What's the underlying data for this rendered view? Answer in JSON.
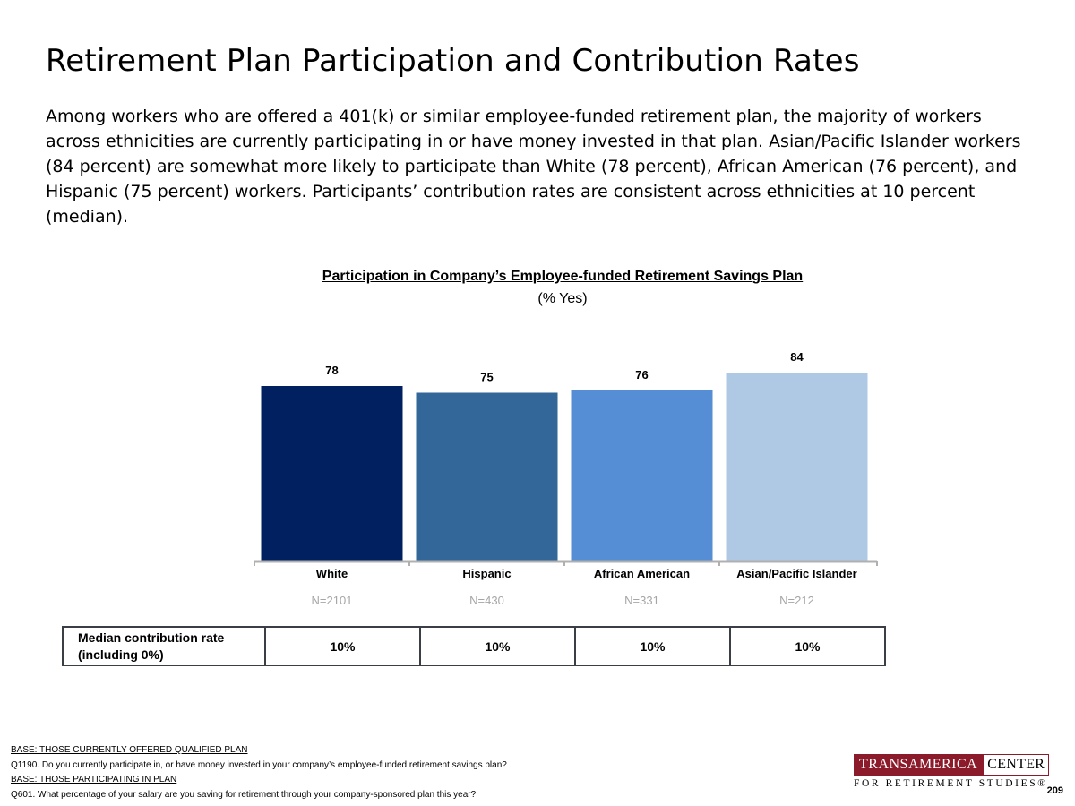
{
  "page": {
    "title": "Retirement Plan Participation and Contribution Rates",
    "intro": "Among workers who are offered a 401(k) or similar employee-funded retirement plan, the majority of workers across ethnicities are currently participating in or have money invested in that plan. Asian/Pacific Islander workers (84 percent) are somewhat more likely to participate than White (78 percent), African American (76 percent), and Hispanic (75 percent) workers. Participants’ contribution rates are consistent across ethnicities at 10 percent (median).",
    "page_number": "209"
  },
  "chart_data": {
    "type": "bar",
    "title": "Participation in Company’s Employee-funded Retirement Savings Plan",
    "subtitle": "(% Yes)",
    "categories": [
      "White",
      "Hispanic",
      "African American",
      "Asian/Pacific Islander"
    ],
    "sample_sizes": [
      "N=2101",
      "N=430",
      "N=331",
      "N=212"
    ],
    "values": [
      78,
      75,
      76,
      84
    ],
    "colors": [
      "#002060",
      "#336699",
      "#558ED5",
      "#AFC8E4"
    ],
    "ylim": [
      0,
      100
    ],
    "grid": false,
    "legend": "none"
  },
  "table": {
    "label": "Median contribution rate (including 0%)",
    "values": [
      "10%",
      "10%",
      "10%",
      "10%"
    ]
  },
  "footnotes": {
    "base1": "BASE: THOSE CURRENTLY OFFERED QUALIFIED PLAN",
    "q1": "Q1190. Do you currently participate in, or have money invested in your company’s employee-funded retirement savings plan?",
    "base2": "BASE: THOSE PARTICIPATING IN PLAN",
    "q2": "Q601. What percentage of your salary are you saving for retirement through your company-sponsored plan this year?"
  },
  "logo": {
    "left": "TRANSAMERICA",
    "right": "CENTER",
    "bottom": "FOR RETIREMENT STUDIES®",
    "brand_color": "#8b1a2b"
  }
}
